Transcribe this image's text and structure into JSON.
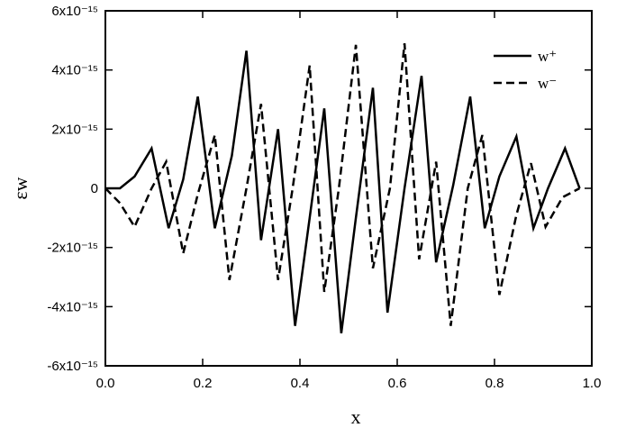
{
  "chart_data": {
    "type": "line",
    "x_label": "x",
    "y_label": "εw",
    "xlim": [
      0,
      1
    ],
    "ylim": [
      -6e-15,
      6e-15
    ],
    "xticks": [
      {
        "value": 0,
        "label": "0.0"
      },
      0.2,
      0.4,
      0.6,
      0.8,
      {
        "value": 1,
        "label": "1.0"
      }
    ],
    "yticks": [
      {
        "value": -6e-15,
        "label": "-6x10⁻¹⁵"
      },
      {
        "value": -4e-15,
        "label": "-4x10⁻¹⁵"
      },
      {
        "value": -2e-15,
        "label": "-2x10⁻¹⁵"
      },
      0,
      {
        "value": 2e-15,
        "label": "2x10⁻¹⁵"
      },
      {
        "value": 4e-15,
        "label": "4x10⁻¹⁵"
      },
      {
        "value": 6e-15,
        "label": "6x10⁻¹⁵"
      }
    ],
    "legend": "upper right",
    "series": [
      {
        "name": "w⁺",
        "color": "#000000",
        "dash": "solid",
        "x": [
          0,
          0.03,
          0.06,
          0.095,
          0.13,
          0.16,
          0.19,
          0.225,
          0.26,
          0.29,
          0.32,
          0.355,
          0.39,
          0.42,
          0.45,
          0.485,
          0.515,
          0.55,
          0.58,
          0.615,
          0.65,
          0.68,
          0.715,
          0.75,
          0.78,
          0.81,
          0.845,
          0.88,
          0.91,
          0.945,
          0.975
        ],
        "values": [
          0,
          0,
          4e-16,
          1.35e-15,
          -1.35e-15,
          3e-16,
          3.1e-15,
          -1.35e-15,
          1.1e-15,
          4.65e-15,
          -1.75e-15,
          2e-15,
          -4.65e-15,
          -1e-15,
          2.7e-15,
          -4.9e-15,
          -1e-15,
          3.4e-15,
          -4.2e-15,
          0,
          3.8e-15,
          -2.5e-15,
          1e-16,
          3.1e-15,
          -1.35e-15,
          4e-16,
          1.75e-15,
          -1.35e-15,
          0,
          1.35e-15,
          0
        ]
      },
      {
        "name": "w⁻",
        "color": "#000000",
        "dash": "dashed",
        "x": [
          0,
          0.03,
          0.06,
          0.095,
          0.125,
          0.16,
          0.19,
          0.225,
          0.255,
          0.29,
          0.32,
          0.355,
          0.385,
          0.42,
          0.45,
          0.48,
          0.515,
          0.55,
          0.585,
          0.615,
          0.645,
          0.68,
          0.71,
          0.745,
          0.775,
          0.81,
          0.845,
          0.875,
          0.905,
          0.94,
          0.975
        ],
        "values": [
          0,
          -5e-16,
          -1.3e-15,
          0,
          9e-16,
          -2.2e-15,
          -2e-16,
          1.8e-15,
          -3.1e-15,
          0,
          2.85e-15,
          -3.1e-15,
          0,
          4.15e-15,
          -3.5e-15,
          0,
          4.85e-15,
          -2.7e-15,
          0,
          4.9e-15,
          -2.4e-15,
          9e-16,
          -4.65e-15,
          0,
          1.8e-15,
          -3.6e-15,
          -9e-16,
          8.5e-16,
          -1.3e-15,
          -3e-16,
          0
        ]
      }
    ]
  }
}
